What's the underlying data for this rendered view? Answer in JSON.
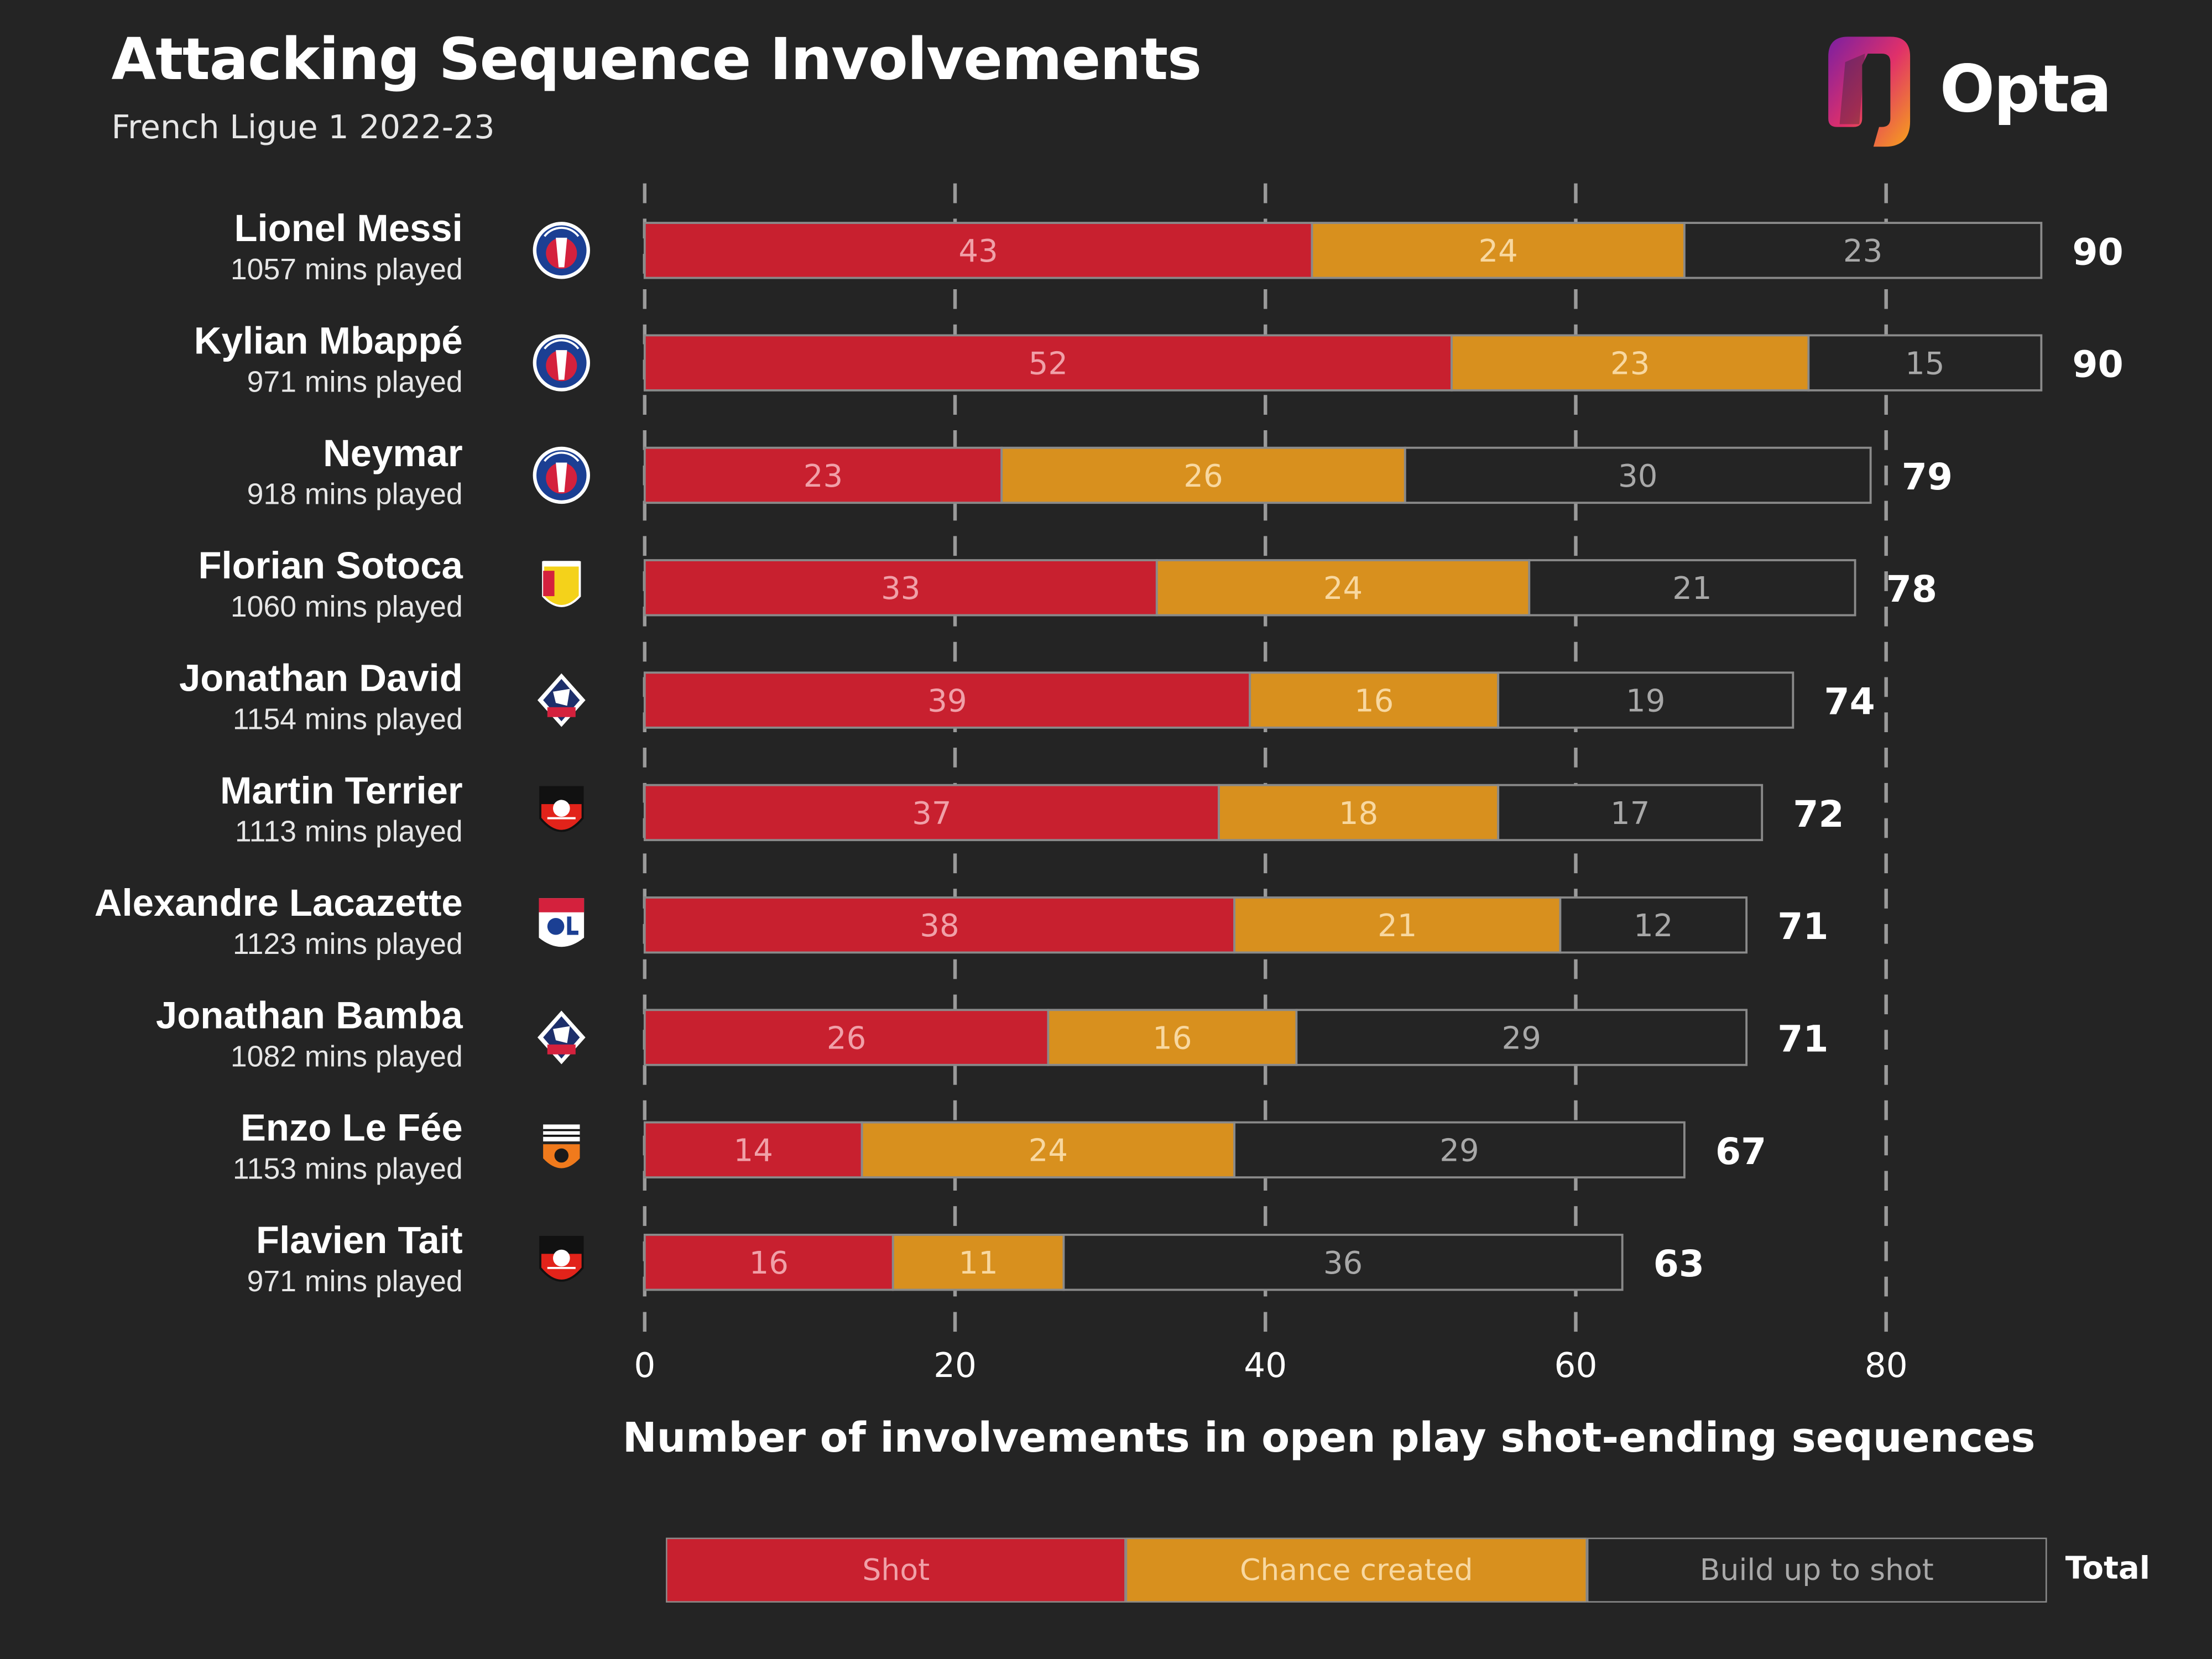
{
  "header": {
    "title": "Attacking Sequence Involvements",
    "subtitle": "French Ligue 1 2022-23",
    "brand": "Opta"
  },
  "colors": {
    "background": "#242424",
    "shot": "#c8202f",
    "chance_created": "#d8901e",
    "build_up": "#242424",
    "grid": "#9a9a9a"
  },
  "legend": {
    "shot": "Shot",
    "chance_created": "Chance created",
    "build_up": "Build up to shot",
    "total": "Total"
  },
  "chart_data": {
    "type": "bar",
    "orientation": "horizontal",
    "stacked": true,
    "xlabel": "Number of involvements in open play shot-ending sequences",
    "xlim": [
      0,
      90
    ],
    "xticks": [
      0,
      20,
      40,
      60,
      80
    ],
    "grid": "vertical dashed",
    "legend_position": "bottom",
    "categories": [
      "Lionel Messi",
      "Kylian Mbappé",
      "Neymar",
      "Florian Sotoca",
      "Jonathan David",
      "Martin Terrier",
      "Alexandre Lacazette",
      "Jonathan Bamba",
      "Enzo Le Fée",
      "Flavien Tait"
    ],
    "minutes_played": [
      "1057 mins played",
      "971 mins played",
      "918 mins played",
      "1060 mins played",
      "1154 mins played",
      "1113 mins played",
      "1123 mins played",
      "1082 mins played",
      "1153 mins played",
      "971 mins played"
    ],
    "clubs": [
      "psg",
      "psg",
      "psg",
      "lens",
      "lille",
      "rennes",
      "lyon",
      "lille",
      "lorient",
      "rennes"
    ],
    "series": [
      {
        "name": "Shot",
        "values": [
          43,
          52,
          23,
          33,
          39,
          37,
          38,
          26,
          14,
          16
        ]
      },
      {
        "name": "Chance created",
        "values": [
          24,
          23,
          26,
          24,
          16,
          18,
          21,
          16,
          24,
          11
        ]
      },
      {
        "name": "Build up to shot",
        "values": [
          23,
          15,
          30,
          21,
          19,
          17,
          12,
          29,
          29,
          36
        ]
      }
    ],
    "totals": [
      90,
      90,
      79,
      78,
      74,
      72,
      71,
      71,
      67,
      63
    ]
  }
}
